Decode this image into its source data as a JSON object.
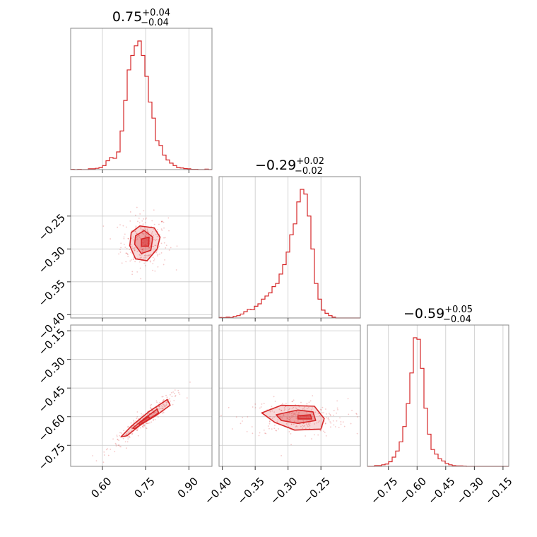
{
  "chart_data": {
    "type": "corner",
    "color": "#d62728",
    "parameters": [
      {
        "title": {
          "median": "0.75",
          "plus": "+0.04",
          "minus": "−0.04"
        },
        "range": [
          0.49,
          0.98
        ],
        "ticks": [
          0.6,
          0.75,
          0.9
        ],
        "tick_labels": [
          "0.60",
          "0.75",
          "0.90"
        ],
        "hist_values": [
          0.2,
          0.0,
          0.2,
          0.0,
          0.0,
          0.5,
          0.5,
          0.8,
          1.2,
          2.5,
          5.5,
          7.5,
          7.0,
          11.0,
          24.0,
          43.0,
          62.0,
          71.0,
          77.0,
          80.0,
          71.0,
          58.0,
          42.0,
          32.0,
          18.0,
          15.0,
          9.0,
          6.0,
          4.0,
          2.5,
          1.2,
          1.0,
          0.6,
          0.5,
          0.2,
          0.2,
          0.0,
          0.0,
          0.3,
          0.0
        ]
      },
      {
        "title": {
          "median": "−0.29",
          "plus": "+0.02",
          "minus": "−0.02"
        },
        "range": [
          -0.405,
          -0.19
        ],
        "ticks": [
          -0.4,
          -0.35,
          -0.3,
          -0.25
        ],
        "tick_labels": [
          "−0.40",
          "−0.35",
          "−0.30",
          "−0.25"
        ],
        "hist_values": [
          0.3,
          0.2,
          0.5,
          0.3,
          1.0,
          1.5,
          2.5,
          4.0,
          5.5,
          5.2,
          7.5,
          9.0,
          12.0,
          14.0,
          16.0,
          20.0,
          22.0,
          28.0,
          34.0,
          42.0,
          53.0,
          60.0,
          74.0,
          82.0,
          79.0,
          65.0,
          44.0,
          22.0,
          12.0,
          5.0,
          3.0,
          1.5,
          0.5,
          0.0,
          0.0,
          0.0,
          0.0,
          0.0,
          0.0,
          0.0
        ]
      },
      {
        "title": {
          "median": "−0.59",
          "plus": "+0.05",
          "minus": "−0.04"
        },
        "range": [
          -0.86,
          -0.12
        ],
        "ticks": [
          -0.75,
          -0.6,
          -0.45,
          -0.3,
          -0.15
        ],
        "tick_labels": [
          "−0.75",
          "−0.60",
          "−0.45",
          "−0.30",
          "−0.15"
        ],
        "hist_values": [
          0.0,
          0.0,
          0.5,
          0.5,
          1.0,
          1.5,
          3.0,
          6.0,
          10.0,
          16.0,
          26.0,
          41.0,
          61.0,
          84.0,
          83.0,
          64.0,
          38.0,
          21.0,
          11.0,
          8.0,
          5.0,
          3.5,
          2.0,
          1.0,
          0.5,
          0.3,
          0.3,
          0.2,
          0.0,
          0.0,
          0.0,
          0.0,
          0.0,
          0.0,
          0.0,
          0.0,
          0.0,
          0.0,
          0.0,
          0.0
        ]
      }
    ],
    "pairs": [
      {
        "x_param": 0,
        "y_param": 1,
        "contours": [
          [
            [
              0.7,
              -0.275
            ],
            [
              0.73,
              -0.265
            ],
            [
              0.78,
              -0.268
            ],
            [
              0.8,
              -0.282
            ],
            [
              0.79,
              -0.3
            ],
            [
              0.755,
              -0.318
            ],
            [
              0.715,
              -0.315
            ],
            [
              0.695,
              -0.295
            ]
          ],
          [
            [
              0.715,
              -0.28
            ],
            [
              0.745,
              -0.272
            ],
            [
              0.775,
              -0.282
            ],
            [
              0.768,
              -0.302
            ],
            [
              0.735,
              -0.307
            ],
            [
              0.712,
              -0.293
            ]
          ],
          [
            [
              0.735,
              -0.285
            ],
            [
              0.762,
              -0.282
            ],
            [
              0.76,
              -0.296
            ],
            [
              0.735,
              -0.296
            ]
          ]
        ]
      },
      {
        "x_param": 0,
        "y_param": 2,
        "contours": [
          [
            [
              0.665,
              -0.705
            ],
            [
              0.7,
              -0.65
            ],
            [
              0.76,
              -0.575
            ],
            [
              0.825,
              -0.51
            ],
            [
              0.835,
              -0.54
            ],
            [
              0.79,
              -0.59
            ],
            [
              0.735,
              -0.64
            ],
            [
              0.685,
              -0.7
            ]
          ],
          [
            [
              0.705,
              -0.66
            ],
            [
              0.745,
              -0.61
            ],
            [
              0.79,
              -0.56
            ],
            [
              0.795,
              -0.58
            ],
            [
              0.75,
              -0.625
            ],
            [
              0.712,
              -0.662
            ]
          ],
          [
            [
              0.725,
              -0.635
            ],
            [
              0.76,
              -0.6
            ],
            [
              0.765,
              -0.612
            ],
            [
              0.73,
              -0.642
            ]
          ]
        ]
      },
      {
        "x_param": 1,
        "y_param": 2,
        "contours": [
          [
            [
              -0.34,
              -0.58
            ],
            [
              -0.31,
              -0.54
            ],
            [
              -0.26,
              -0.545
            ],
            [
              -0.245,
              -0.61
            ],
            [
              -0.25,
              -0.665
            ],
            [
              -0.29,
              -0.67
            ],
            [
              -0.32,
              -0.63
            ]
          ],
          [
            [
              -0.318,
              -0.59
            ],
            [
              -0.285,
              -0.565
            ],
            [
              -0.262,
              -0.575
            ],
            [
              -0.258,
              -0.62
            ],
            [
              -0.285,
              -0.635
            ],
            [
              -0.31,
              -0.62
            ]
          ],
          [
            [
              -0.285,
              -0.595
            ],
            [
              -0.266,
              -0.59
            ],
            [
              -0.264,
              -0.612
            ],
            [
              -0.285,
              -0.612
            ]
          ]
        ]
      }
    ]
  }
}
